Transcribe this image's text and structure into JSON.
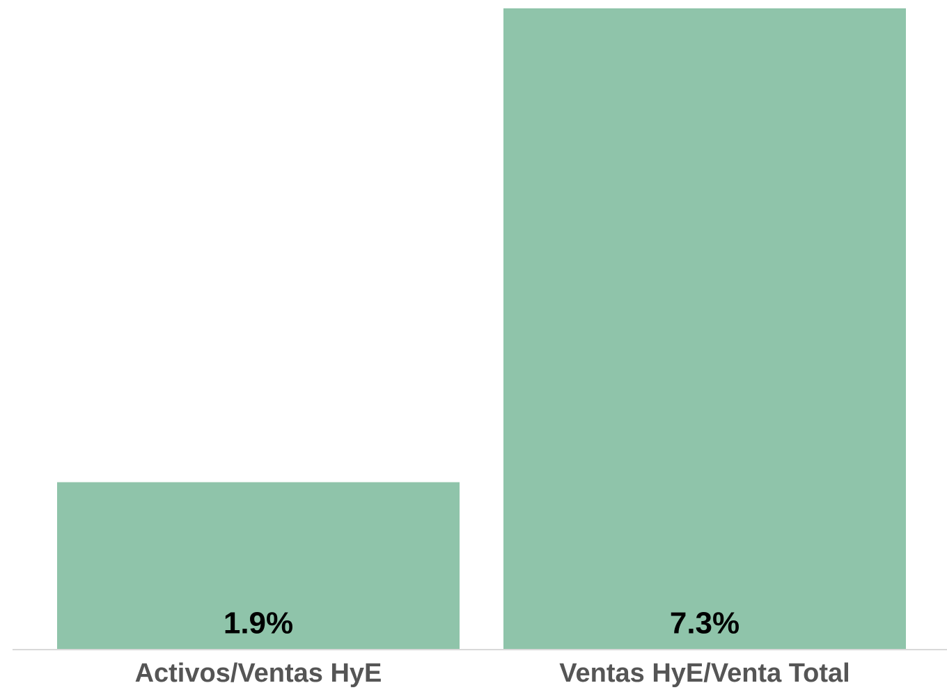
{
  "chart_data": {
    "type": "bar",
    "categories": [
      "Activos/Ventas HyE",
      "Ventas HyE/Venta Total"
    ],
    "values": [
      1.9,
      7.3
    ],
    "value_labels": [
      "1.9%",
      "7.3%"
    ],
    "color": "#8fc4aa"
  }
}
